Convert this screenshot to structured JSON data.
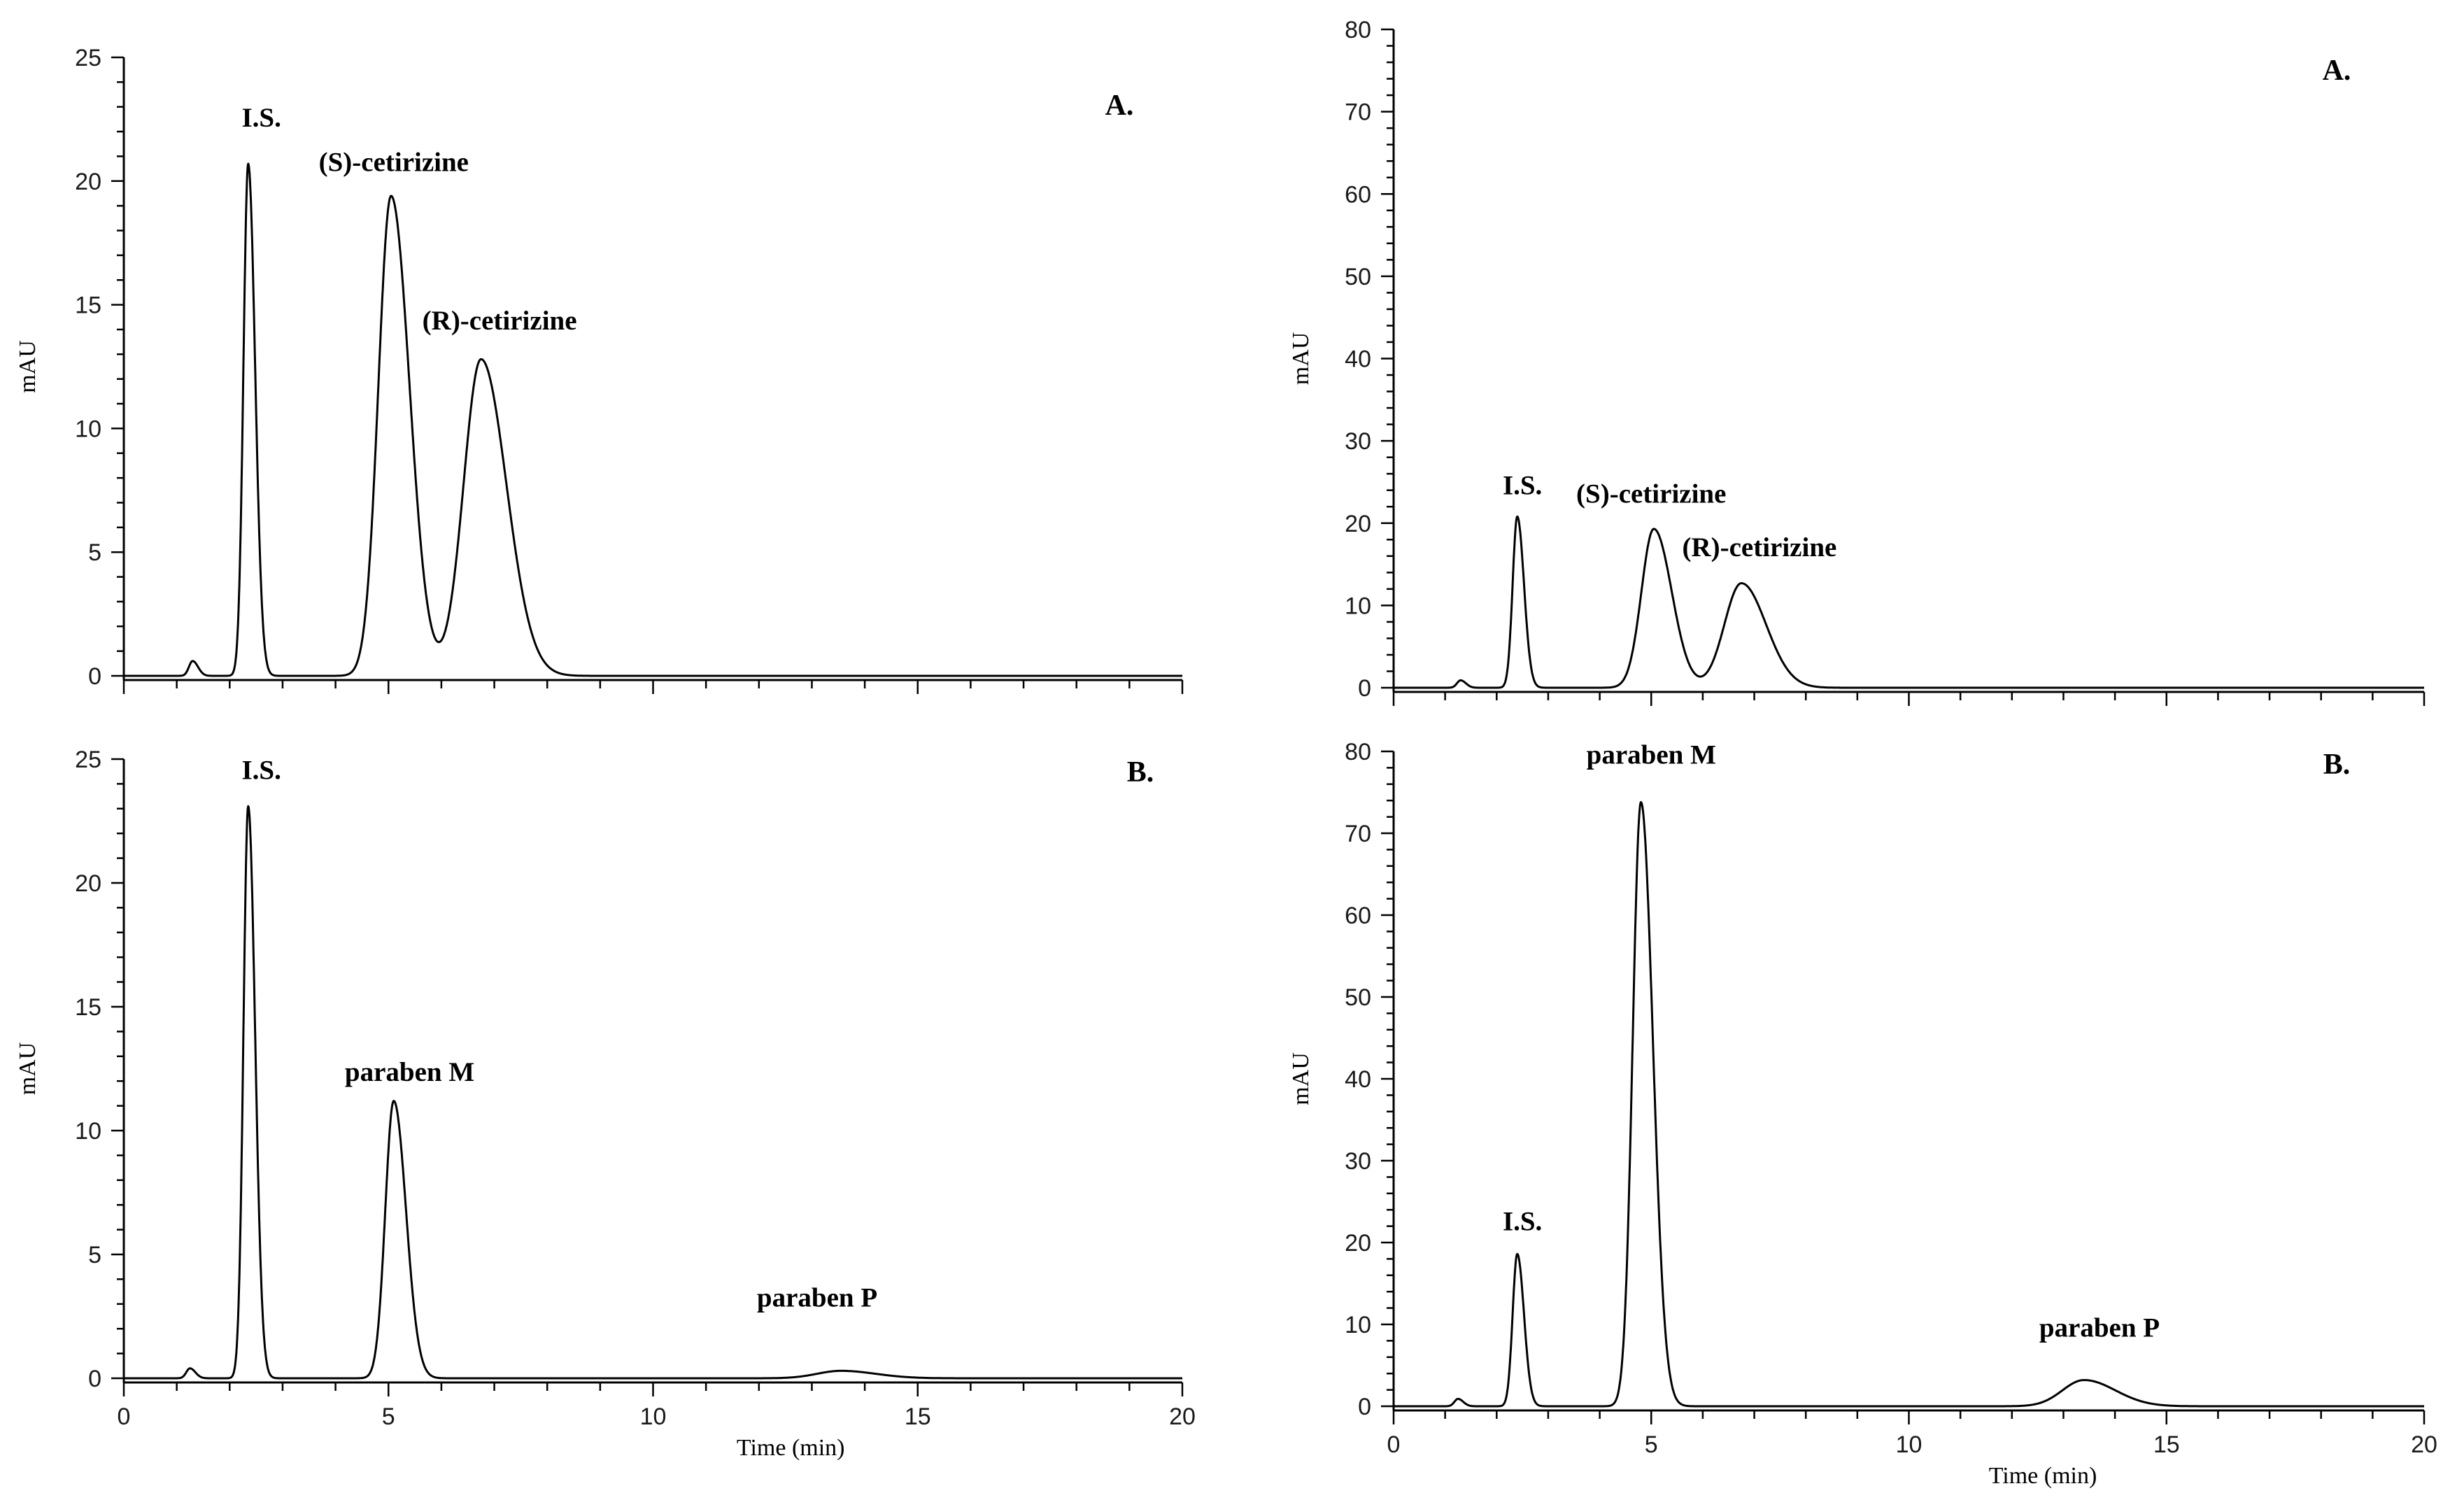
{
  "chart_data": [
    {
      "type": "line",
      "panel_label": "A.",
      "xlabel": "",
      "ylabel": "mAU",
      "xlim": [
        0,
        20
      ],
      "ylim": [
        0,
        25
      ],
      "x_ticks": [
        0,
        5,
        10,
        15,
        20
      ],
      "y_ticks": [
        0,
        5,
        10,
        15,
        20,
        25
      ],
      "x_ticks_shown": false,
      "baseline": 0,
      "series": [
        {
          "peaks": [
            {
              "t": 1.3,
              "h": 0.6,
              "w": 0.07
            },
            {
              "t": 2.35,
              "h": 20.7,
              "w": 0.09
            },
            {
              "t": 5.05,
              "h": 19.4,
              "w": 0.24
            },
            {
              "t": 6.75,
              "h": 12.8,
              "w": 0.33
            }
          ]
        }
      ],
      "annotations": [
        {
          "text": "I.S.",
          "x": 2.6,
          "y": 22.2
        },
        {
          "text": "(S)-cetirizine",
          "x": 5.1,
          "y": 20.4
        },
        {
          "text": "(R)-cetirizine",
          "x": 7.1,
          "y": 14.0
        }
      ]
    },
    {
      "type": "line",
      "panel_label": "B.",
      "xlabel": "Time (min)",
      "ylabel": "mAU",
      "xlim": [
        0,
        20
      ],
      "ylim": [
        0,
        25
      ],
      "x_ticks": [
        0,
        5,
        10,
        15,
        20
      ],
      "y_ticks": [
        0,
        5,
        10,
        15,
        20,
        25
      ],
      "x_ticks_shown": true,
      "baseline": 0,
      "series": [
        {
          "peaks": [
            {
              "t": 1.25,
              "h": 0.4,
              "w": 0.07
            },
            {
              "t": 2.35,
              "h": 23.1,
              "w": 0.09
            },
            {
              "t": 5.1,
              "h": 11.2,
              "w": 0.16
            },
            {
              "t": 13.55,
              "h": 0.3,
              "w": 0.45
            }
          ]
        }
      ],
      "annotations": [
        {
          "text": "I.S.",
          "x": 2.6,
          "y": 24.2
        },
        {
          "text": "paraben M",
          "x": 5.4,
          "y": 12.0
        },
        {
          "text": "paraben P",
          "x": 13.1,
          "y": 2.9
        }
      ]
    },
    {
      "type": "line",
      "panel_label": "A.",
      "xlabel": "",
      "ylabel": "mAU",
      "xlim": [
        0,
        20
      ],
      "ylim": [
        0,
        80
      ],
      "x_ticks": [
        0,
        5,
        10,
        15,
        20
      ],
      "y_ticks": [
        0,
        10,
        20,
        30,
        40,
        50,
        60,
        70,
        80
      ],
      "x_ticks_shown": false,
      "baseline": 0,
      "series": [
        {
          "peaks": [
            {
              "t": 1.3,
              "h": 0.9,
              "w": 0.07
            },
            {
              "t": 2.4,
              "h": 20.8,
              "w": 0.09
            },
            {
              "t": 5.05,
              "h": 19.3,
              "w": 0.24
            },
            {
              "t": 6.75,
              "h": 12.7,
              "w": 0.33
            }
          ]
        }
      ],
      "annotations": [
        {
          "text": "I.S.",
          "x": 2.5,
          "y": 23.5
        },
        {
          "text": "(S)-cetirizine",
          "x": 5.0,
          "y": 22.5
        },
        {
          "text": "(R)-cetirizine",
          "x": 7.1,
          "y": 16.0
        }
      ]
    },
    {
      "type": "line",
      "panel_label": "B.",
      "xlabel": "Time (min)",
      "ylabel": "mAU",
      "xlim": [
        0,
        20
      ],
      "ylim": [
        0,
        80
      ],
      "x_ticks": [
        0,
        5,
        10,
        15,
        20
      ],
      "y_ticks": [
        0,
        10,
        20,
        30,
        40,
        50,
        60,
        70,
        80
      ],
      "x_ticks_shown": true,
      "baseline": 0,
      "series": [
        {
          "peaks": [
            {
              "t": 1.25,
              "h": 0.9,
              "w": 0.07
            },
            {
              "t": 2.4,
              "h": 18.6,
              "w": 0.09
            },
            {
              "t": 4.8,
              "h": 73.8,
              "w": 0.16
            },
            {
              "t": 13.4,
              "h": 3.2,
              "w": 0.42
            }
          ]
        }
      ],
      "annotations": [
        {
          "text": "I.S.",
          "x": 2.5,
          "y": 21.5
        },
        {
          "text": "paraben M",
          "x": 5.0,
          "y": 78.5
        },
        {
          "text": "paraben P",
          "x": 13.7,
          "y": 8.5
        }
      ]
    }
  ]
}
